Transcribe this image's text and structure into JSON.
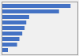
{
  "chart_data": {
    "type": "bar",
    "orientation": "horizontal",
    "categories": [
      null,
      null,
      null,
      null,
      null,
      null,
      null,
      null,
      null
    ],
    "values": [
      1200,
      1000,
      480,
      430,
      400,
      360,
      310,
      270,
      110
    ],
    "color": "#4472c4",
    "xlim": [
      0,
      1320
    ],
    "tick_labels": false
  }
}
